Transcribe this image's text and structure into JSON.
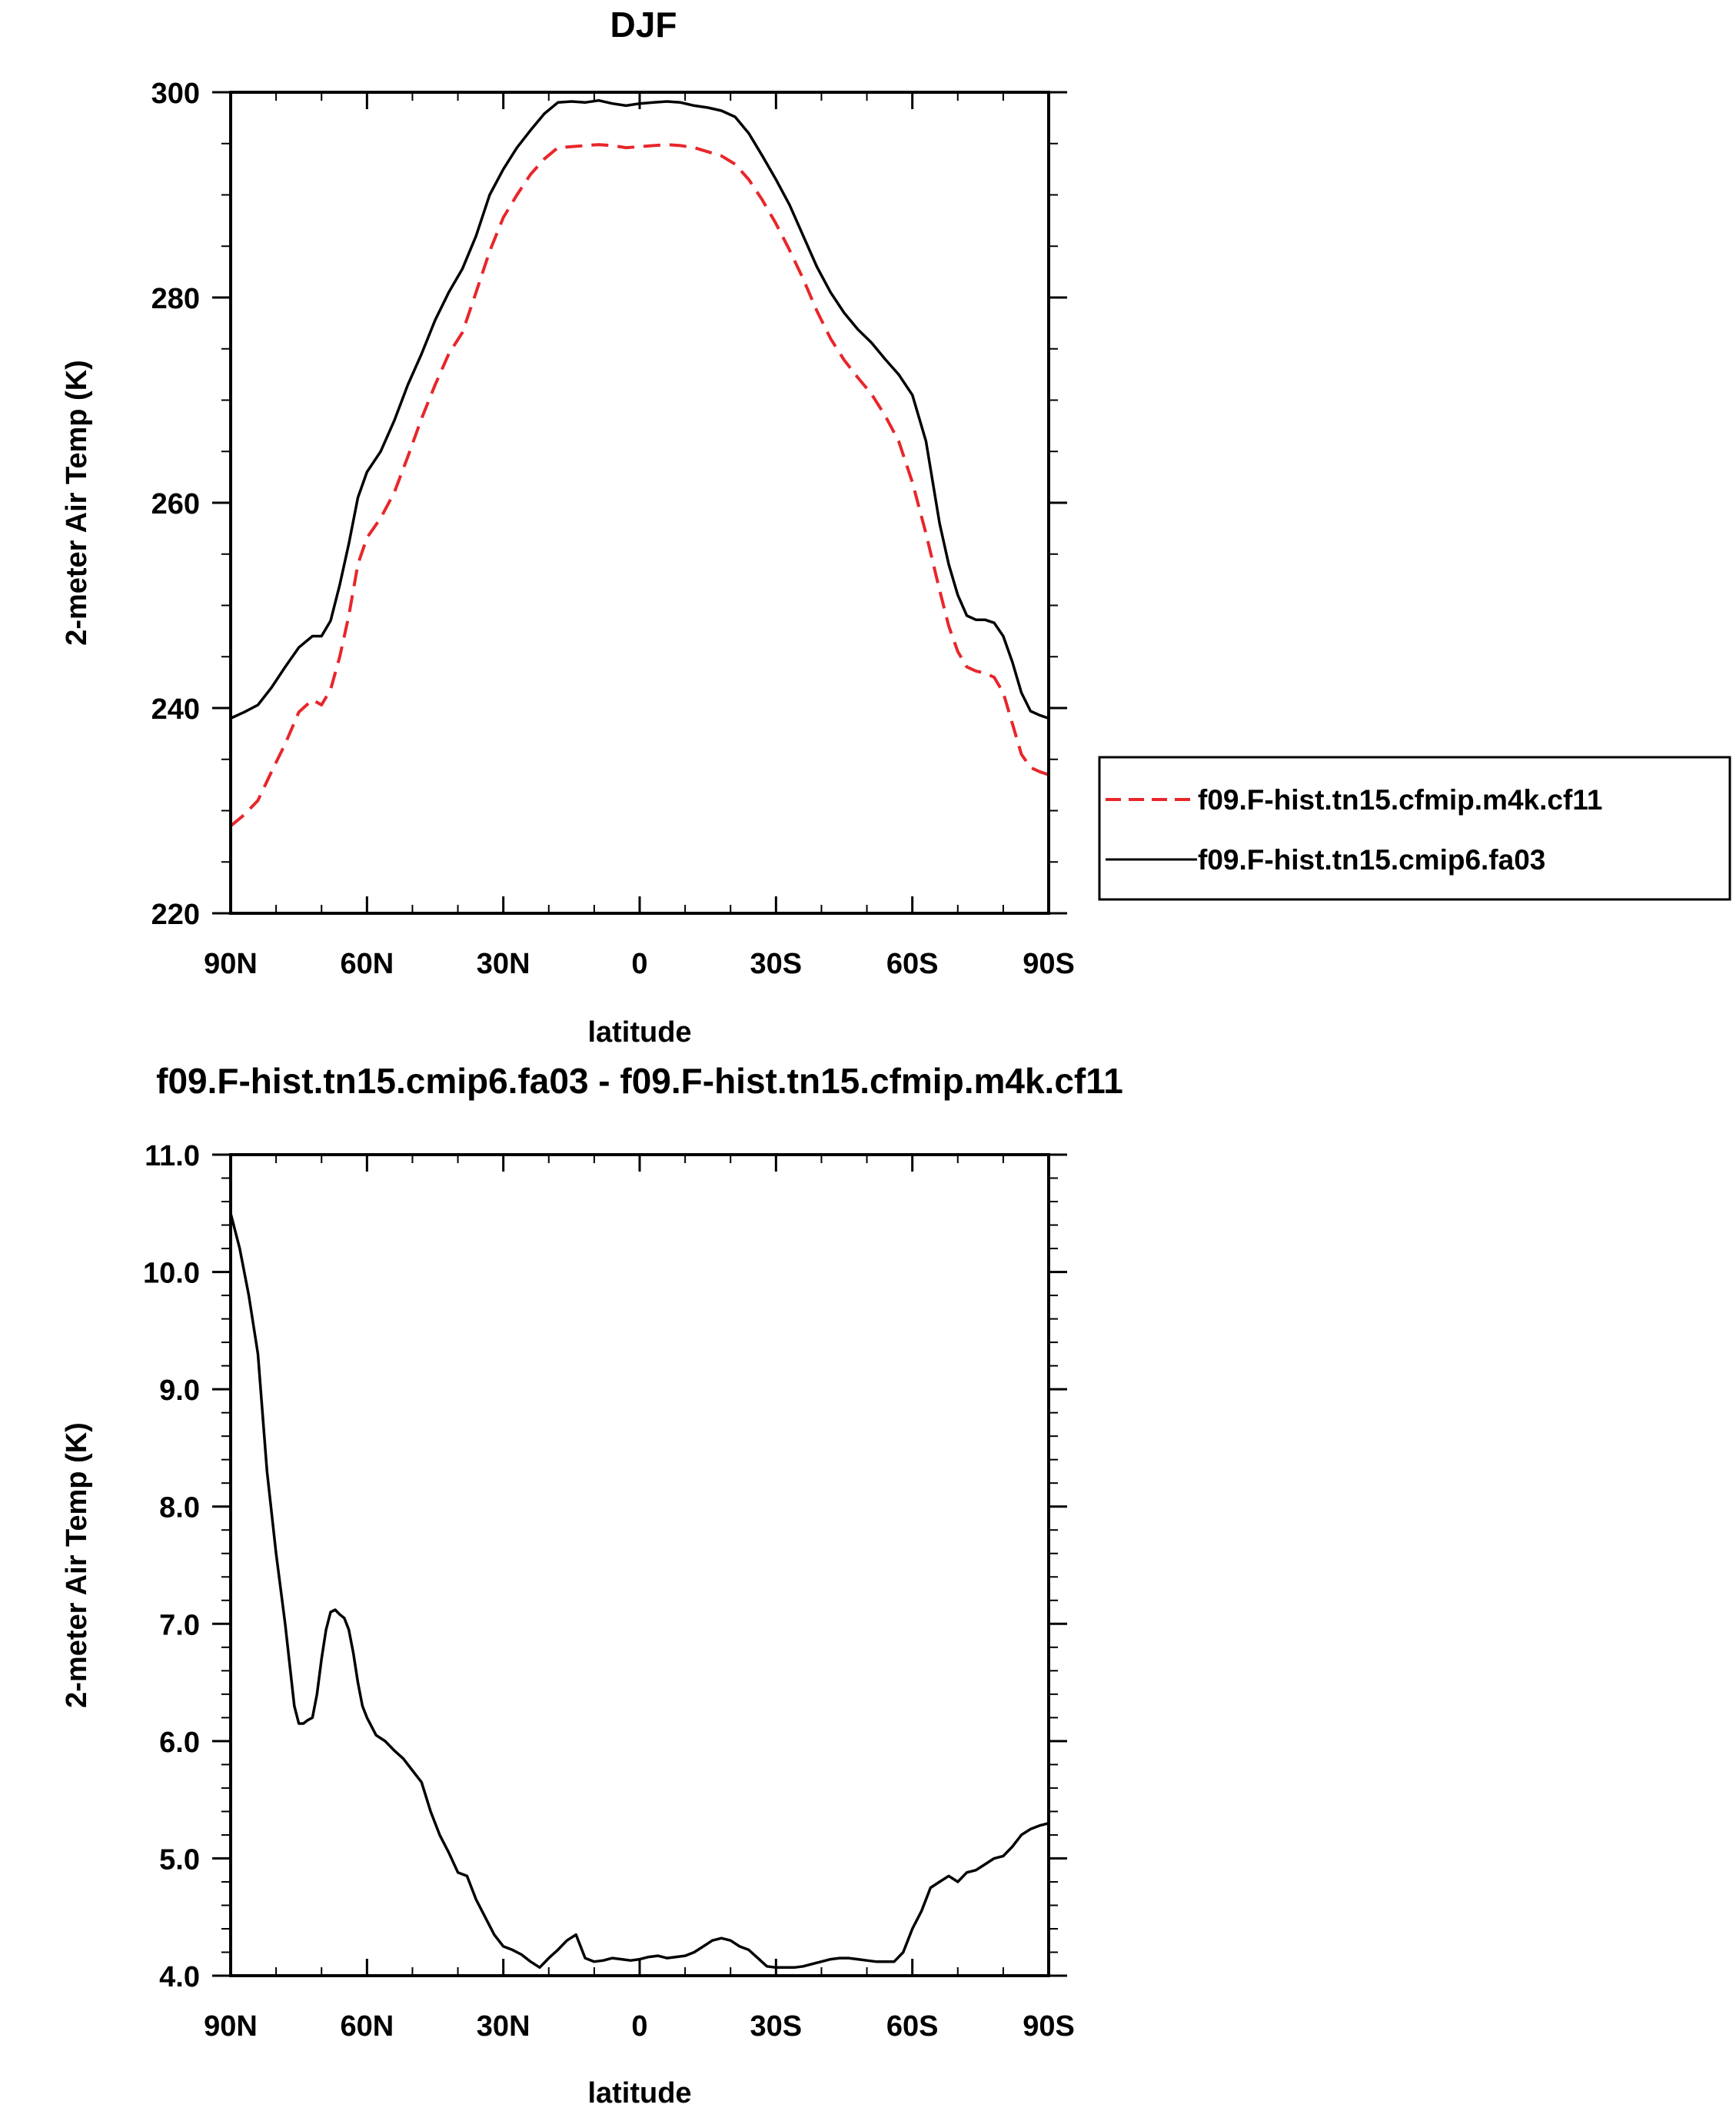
{
  "chart_data": [
    {
      "type": "line",
      "title": "DJF",
      "xlabel": "latitude",
      "ylabel": "2-meter Air Temp (K)",
      "xlim": [
        90,
        -90
      ],
      "ylim": [
        220,
        300
      ],
      "x_ticks": [
        90,
        60,
        30,
        0,
        -30,
        -60,
        -90
      ],
      "x_tick_labels": [
        "90N",
        "60N",
        "30N",
        "0",
        "30S",
        "60S",
        "90S"
      ],
      "y_ticks": [
        220,
        240,
        260,
        280,
        300
      ],
      "y_tick_labels": [
        "220",
        "240",
        "260",
        "280",
        "300"
      ],
      "legend": {
        "placement": "right",
        "entries": [
          "f09.F-hist.tn15.cfmip.m4k.cf11",
          "f09.F-hist.tn15.cmip6.fa03"
        ]
      },
      "series": [
        {
          "name": "f09.F-hist.tn15.cfmip.m4k.cf11",
          "color": "#e8262a",
          "style": "dashed",
          "x": [
            90,
            87,
            84,
            81,
            78,
            75,
            72,
            70,
            68,
            66,
            64,
            62,
            60,
            57,
            54,
            51,
            48,
            45,
            42,
            39,
            36,
            33,
            30,
            27,
            24,
            21,
            18,
            15,
            12,
            9,
            6,
            3,
            0,
            -3,
            -6,
            -9,
            -12,
            -15,
            -18,
            -21,
            -24,
            -27,
            -30,
            -33,
            -36,
            -39,
            -42,
            -45,
            -48,
            -51,
            -54,
            -57,
            -60,
            -63,
            -66,
            -68,
            -70,
            -72,
            -74,
            -76,
            -78,
            -80,
            -82,
            -84,
            -86,
            -88,
            -90
          ],
          "values": [
            228.5,
            229.6,
            231.0,
            233.8,
            236.5,
            239.6,
            240.8,
            240.3,
            241.8,
            245.0,
            249.0,
            254.0,
            256.6,
            258.5,
            261.0,
            264.5,
            268.2,
            271.5,
            274.5,
            276.6,
            280.5,
            284.5,
            287.8,
            290.0,
            292.0,
            293.5,
            294.6,
            294.7,
            294.8,
            294.9,
            294.8,
            294.6,
            294.7,
            294.8,
            294.9,
            294.8,
            294.6,
            294.2,
            293.8,
            293.0,
            291.5,
            289.5,
            287.2,
            284.6,
            281.8,
            278.7,
            276.0,
            273.9,
            272.2,
            270.6,
            268.5,
            266.0,
            262.0,
            257.0,
            251.5,
            248.0,
            245.5,
            244.0,
            243.6,
            243.4,
            243.0,
            241.5,
            238.5,
            235.5,
            234.2,
            233.8,
            233.5
          ]
        },
        {
          "name": "f09.F-hist.tn15.cmip6.fa03",
          "color": "#000000",
          "style": "solid",
          "x": [
            90,
            87,
            84,
            81,
            78,
            75,
            72,
            70,
            68,
            66,
            64,
            62,
            60,
            57,
            54,
            51,
            48,
            45,
            42,
            39,
            36,
            33,
            30,
            27,
            24,
            21,
            18,
            15,
            12,
            9,
            6,
            3,
            0,
            -3,
            -6,
            -9,
            -12,
            -15,
            -18,
            -21,
            -24,
            -27,
            -30,
            -33,
            -36,
            -39,
            -42,
            -45,
            -48,
            -51,
            -54,
            -57,
            -60,
            -63,
            -66,
            -68,
            -70,
            -72,
            -74,
            -76,
            -78,
            -80,
            -82,
            -84,
            -86,
            -88,
            -90
          ],
          "values": [
            239.0,
            239.6,
            240.3,
            242.0,
            244.0,
            245.9,
            247.0,
            247.0,
            248.5,
            252.0,
            256.0,
            260.5,
            263.0,
            265.0,
            268.0,
            271.5,
            274.5,
            277.8,
            280.5,
            282.8,
            286.0,
            290.0,
            292.5,
            294.6,
            296.3,
            297.9,
            299.0,
            299.1,
            299.0,
            299.2,
            298.9,
            298.7,
            298.9,
            299.0,
            299.1,
            299.0,
            298.7,
            298.5,
            298.2,
            297.6,
            296.0,
            293.8,
            291.5,
            289.0,
            286.0,
            283.0,
            280.5,
            278.5,
            276.9,
            275.6,
            274.0,
            272.5,
            270.5,
            266.0,
            258.0,
            254.0,
            251.0,
            249.0,
            248.6,
            248.6,
            248.3,
            247.0,
            244.5,
            241.5,
            239.7,
            239.3,
            239.0
          ]
        }
      ]
    },
    {
      "type": "line",
      "title": "f09.F-hist.tn15.cmip6.fa03 - f09.F-hist.tn15.cfmip.m4k.cf11",
      "xlabel": "latitude",
      "ylabel": "2-meter Air Temp (K)",
      "xlim": [
        90,
        -90
      ],
      "ylim": [
        4.0,
        11.0
      ],
      "x_ticks": [
        90,
        60,
        30,
        0,
        -30,
        -60,
        -90
      ],
      "x_tick_labels": [
        "90N",
        "60N",
        "30N",
        "0",
        "30S",
        "60S",
        "90S"
      ],
      "y_ticks": [
        4.0,
        5.0,
        6.0,
        7.0,
        8.0,
        9.0,
        10.0,
        11.0
      ],
      "y_tick_labels": [
        "4.0",
        "5.0",
        "6.0",
        "7.0",
        "8.0",
        "9.0",
        "10.0",
        "11.0"
      ],
      "series": [
        {
          "name": "f09.F-hist.tn15.cmip6.fa03 - f09.F-hist.tn15.cfmip.m4k.cf11",
          "color": "#000000",
          "style": "solid",
          "x": [
            90,
            88,
            86,
            84,
            82,
            80,
            78,
            76,
            75,
            74,
            73,
            72,
            71,
            70,
            69,
            68,
            67,
            66,
            65,
            64,
            63,
            62,
            61,
            60,
            58,
            56,
            54,
            52,
            50,
            48,
            46,
            44,
            42,
            40,
            38,
            36,
            34,
            32,
            30,
            28,
            26,
            24,
            22,
            20,
            18,
            16,
            14,
            12,
            10,
            8,
            6,
            4,
            2,
            0,
            -2,
            -4,
            -6,
            -8,
            -10,
            -12,
            -14,
            -16,
            -18,
            -20,
            -22,
            -24,
            -26,
            -28,
            -30,
            -32,
            -34,
            -36,
            -38,
            -40,
            -42,
            -44,
            -46,
            -48,
            -50,
            -52,
            -54,
            -56,
            -58,
            -60,
            -62,
            -64,
            -66,
            -68,
            -70,
            -72,
            -74,
            -76,
            -78,
            -80,
            -82,
            -84,
            -86,
            -88,
            -90
          ],
          "values": [
            10.5,
            10.2,
            9.8,
            9.3,
            8.3,
            7.6,
            7.0,
            6.3,
            6.15,
            6.15,
            6.18,
            6.2,
            6.4,
            6.7,
            6.95,
            7.1,
            7.12,
            7.08,
            7.05,
            6.95,
            6.75,
            6.5,
            6.3,
            6.2,
            6.05,
            6.0,
            5.92,
            5.85,
            5.75,
            5.65,
            5.4,
            5.2,
            5.05,
            4.88,
            4.85,
            4.65,
            4.5,
            4.35,
            4.25,
            4.22,
            4.18,
            4.12,
            4.07,
            4.15,
            4.22,
            4.3,
            4.35,
            4.15,
            4.12,
            4.13,
            4.15,
            4.14,
            4.13,
            4.14,
            4.16,
            4.17,
            4.15,
            4.16,
            4.17,
            4.2,
            4.25,
            4.3,
            4.32,
            4.3,
            4.25,
            4.22,
            4.15,
            4.08,
            4.07,
            4.07,
            4.07,
            4.08,
            4.1,
            4.12,
            4.14,
            4.15,
            4.15,
            4.14,
            4.13,
            4.12,
            4.12,
            4.12,
            4.2,
            4.4,
            4.55,
            4.75,
            4.8,
            4.85,
            4.8,
            4.88,
            4.9,
            4.95,
            5.0,
            5.02,
            5.1,
            5.2,
            5.25,
            5.28,
            5.3
          ]
        }
      ]
    }
  ]
}
